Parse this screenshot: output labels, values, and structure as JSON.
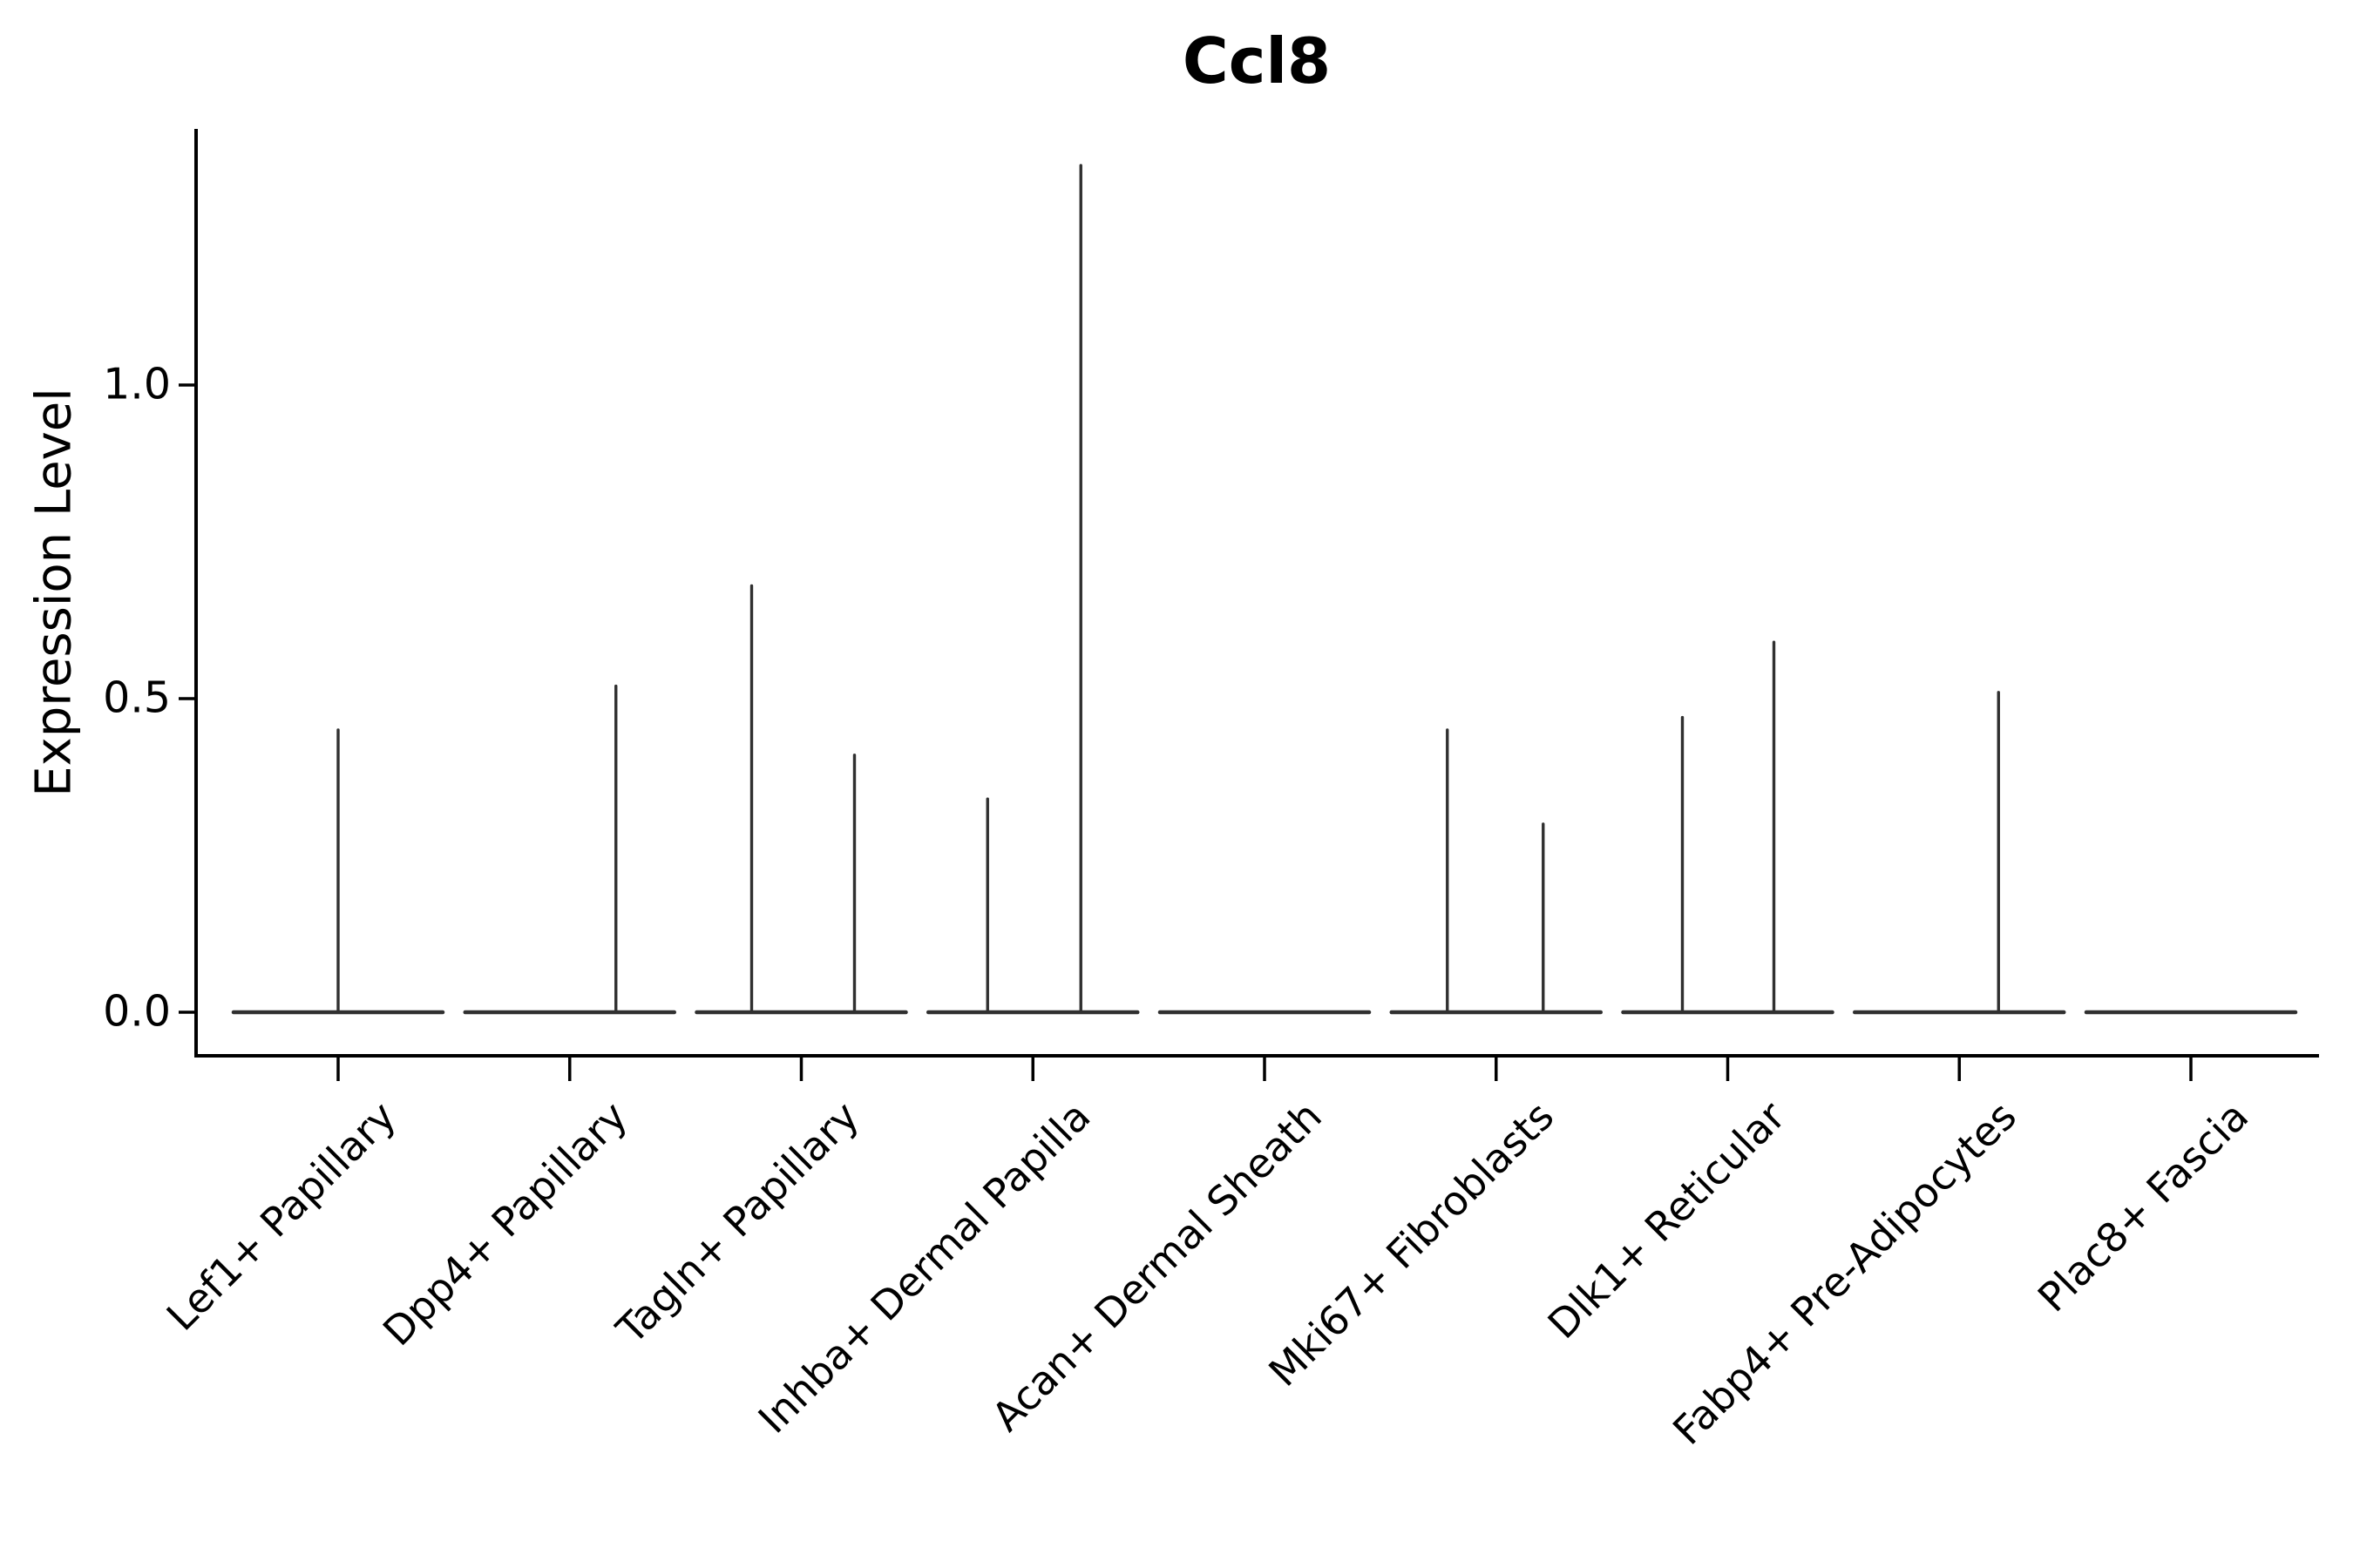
{
  "figure": {
    "title": "Ccl8",
    "ylabel": "Expression Level",
    "background": "#ffffff"
  },
  "chart_data": {
    "type": "violin",
    "title": "Ccl8",
    "xlabel": "",
    "ylabel": "Expression Level",
    "ylim": [
      -0.07,
      1.41
    ],
    "yticks": [
      0.0,
      0.5,
      1.0
    ],
    "ytick_labels": [
      "0.0",
      "0.5",
      "1.0"
    ],
    "grid": false,
    "legend": null,
    "categories": [
      "Lef1+ Papillary",
      "Dpp4+ Papillary",
      "Tagln+ Papillary",
      "Inhba+ Dermal Papilla",
      "Acan+ Dermal Sheath",
      "Mki67+ Fibroblasts",
      "Dlk1+ Reticular",
      "Fabp4+ Pre-Adipocytes",
      "Plac8+ Fascia"
    ],
    "violins": [
      {
        "category": "Lef1+ Papillary",
        "baseline_at": 0.0,
        "spikes": [
          {
            "dx": 0,
            "max": 0.45
          }
        ]
      },
      {
        "category": "Dpp4+ Papillary",
        "baseline_at": 0.0,
        "spikes": [
          {
            "dx": 53,
            "max": 0.52
          }
        ]
      },
      {
        "category": "Tagln+ Papillary",
        "baseline_at": 0.0,
        "spikes": [
          {
            "dx": -57,
            "max": 0.68
          },
          {
            "dx": 61,
            "max": 0.41
          }
        ]
      },
      {
        "category": "Inhba+ Dermal Papilla",
        "baseline_at": 0.0,
        "spikes": [
          {
            "dx": -52,
            "max": 0.34
          },
          {
            "dx": 55,
            "max": 1.35
          }
        ]
      },
      {
        "category": "Acan+ Dermal Sheath",
        "baseline_at": 0.0,
        "spikes": []
      },
      {
        "category": "Mki67+ Fibroblasts",
        "baseline_at": 0.0,
        "spikes": [
          {
            "dx": -56,
            "max": 0.45
          },
          {
            "dx": 54,
            "max": 0.3
          }
        ]
      },
      {
        "category": "Dlk1+ Reticular",
        "baseline_at": 0.0,
        "spikes": [
          {
            "dx": -52,
            "max": 0.47
          },
          {
            "dx": 53,
            "max": 0.59
          }
        ]
      },
      {
        "category": "Fabp4+ Pre-Adipocytes",
        "baseline_at": 0.0,
        "spikes": [
          {
            "dx": 45,
            "max": 0.51
          }
        ]
      },
      {
        "category": "Plac8+ Fascia",
        "baseline_at": 0.0,
        "spikes": []
      }
    ],
    "colors": {
      "violin_line": "#303030",
      "axis": "#000000",
      "text": "#000000",
      "background": "#ffffff"
    }
  }
}
